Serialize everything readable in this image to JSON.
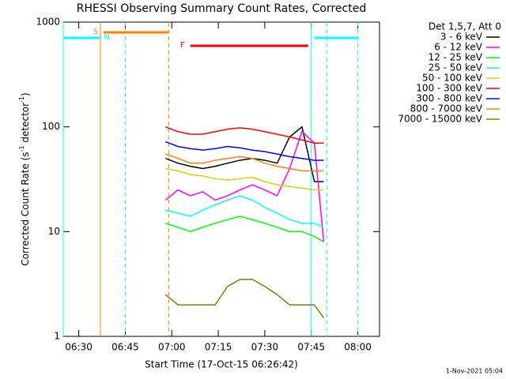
{
  "chart_data": {
    "type": "line",
    "title": "RHESSI Observing Summary Count Rates, Corrected",
    "xlabel": "Start Time (17-Oct-15 06:26:42)",
    "ylabel": [
      "Corrected Count Rate (s",
      "-1",
      " detector",
      "-1",
      ")"
    ],
    "log_y": true,
    "xlim": [
      "06:25",
      "08:07"
    ],
    "xticks": [
      "06:30",
      "06:45",
      "07:00",
      "07:15",
      "07:30",
      "07:45",
      "08:00"
    ],
    "ylim": [
      1,
      1000
    ],
    "yticks": [
      1,
      10,
      100,
      1000
    ],
    "legend_title": "Det 1,5,7, Att 0",
    "legend_position": "outside-right",
    "timestamp": "1-Nov-2021 05:04",
    "x": [
      "06:58",
      "07:02",
      "07:06",
      "07:10",
      "07:14",
      "07:18",
      "07:22",
      "07:26",
      "07:30",
      "07:34",
      "07:38",
      "07:42",
      "07:46",
      "07:49"
    ],
    "series": [
      {
        "name": "3 - 6 keV",
        "color": "#000000",
        "values": [
          50,
          45,
          42,
          40,
          42,
          45,
          48,
          50,
          48,
          45,
          80,
          100,
          30,
          30
        ]
      },
      {
        "name": "6 - 12 keV",
        "color": "#ff00ff",
        "values": [
          20,
          25,
          22,
          24,
          20,
          22,
          25,
          28,
          25,
          22,
          40,
          90,
          70,
          8
        ]
      },
      {
        "name": "12 - 25 keV",
        "color": "#00ff00",
        "values": [
          12,
          11,
          10,
          11,
          12,
          13,
          14,
          13,
          12,
          11,
          10,
          10,
          9,
          8
        ]
      },
      {
        "name": "25 - 50 keV",
        "color": "#00ffff",
        "values": [
          16,
          15,
          14,
          16,
          18,
          20,
          22,
          20,
          17,
          15,
          13,
          12,
          12,
          11
        ]
      },
      {
        "name": "50 - 100 keV",
        "color": "#d4d400",
        "values": [
          40,
          38,
          35,
          34,
          32,
          31,
          32,
          33,
          30,
          28,
          27,
          26,
          25,
          25
        ]
      },
      {
        "name": "100 - 300 keV",
        "color": "#ff0000",
        "values": [
          100,
          90,
          85,
          85,
          90,
          95,
          98,
          95,
          90,
          85,
          80,
          75,
          70,
          70
        ]
      },
      {
        "name": "300 - 800 keV",
        "color": "#0000ff",
        "values": [
          72,
          65,
          62,
          60,
          62,
          65,
          63,
          60,
          58,
          55,
          52,
          50,
          48,
          48
        ]
      },
      {
        "name": "800 - 7000 keV",
        "color": "#ff8000",
        "values": [
          55,
          50,
          45,
          45,
          48,
          50,
          52,
          50,
          45,
          42,
          40,
          38,
          38,
          38
        ]
      },
      {
        "name": "7000 - 15000 keV",
        "color": "#808000",
        "values": [
          2.5,
          2,
          2,
          2,
          2,
          3,
          3.5,
          3.5,
          3,
          2.5,
          2,
          2,
          2,
          1.5
        ]
      }
    ],
    "flags": [
      {
        "label": "S",
        "color": "#ff8000",
        "start": "06:38",
        "end": "06:59"
      },
      {
        "label": "F",
        "color": "#ff0000",
        "start": "07:06",
        "end": "07:44"
      },
      {
        "label": "N",
        "color": "#00ffff",
        "start": "06:25",
        "end": "06:37"
      },
      {
        "label": null,
        "color": "#00ffff",
        "start": "07:46",
        "end": "08:00"
      }
    ],
    "vlines": [
      {
        "x": "06:25",
        "color": "#00ffff",
        "dashed": false
      },
      {
        "x": "06:37",
        "color": "#ff8000",
        "dashed": false
      },
      {
        "x": "06:45",
        "color": "#00ffff",
        "dashed": true
      },
      {
        "x": "06:59",
        "color": "#ff8000",
        "dashed": true
      },
      {
        "x": "07:45",
        "color": "#00ffff",
        "dashed": false
      },
      {
        "x": "07:50",
        "color": "#00ffff",
        "dashed": true
      },
      {
        "x": "08:00",
        "color": "#00ffff",
        "dashed": true
      }
    ]
  }
}
